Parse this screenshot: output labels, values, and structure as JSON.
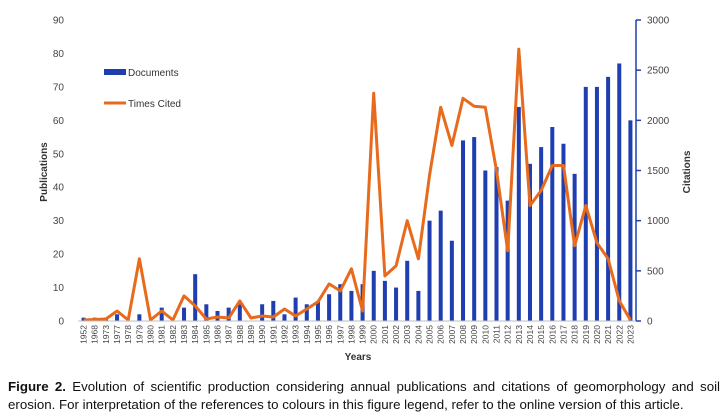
{
  "chart_data": {
    "type": "bar+line",
    "xlabel": "Years",
    "ylabel_left": "Publications",
    "ylabel_right": "Citations",
    "ylim_left": [
      0,
      90
    ],
    "ylim_right": [
      0,
      3000
    ],
    "yticks_left": [
      "0",
      "10",
      "20",
      "30",
      "40",
      "50",
      "60",
      "70",
      "80",
      "90"
    ],
    "yticks_right": [
      "0",
      "500",
      "1000",
      "1500",
      "2000",
      "2500",
      "3000"
    ],
    "legend_position": "top-left",
    "bar_color": "#1f3fb0",
    "line_color": "#e86a1c",
    "categories": [
      "1952",
      "1968",
      "1973",
      "1977",
      "1978",
      "1979",
      "1980",
      "1981",
      "1982",
      "1983",
      "1984",
      "1985",
      "1986",
      "1987",
      "1988",
      "1989",
      "1990",
      "1991",
      "1992",
      "1993",
      "1994",
      "1995",
      "1996",
      "1997",
      "1998",
      "1999",
      "2000",
      "2001",
      "2002",
      "2003",
      "2004",
      "2005",
      "2006",
      "2007",
      "2008",
      "2009",
      "2010",
      "2011",
      "2012",
      "2013",
      "2014",
      "2015",
      "2016",
      "2017",
      "2018",
      "2019",
      "2020",
      "2021",
      "2022",
      "2023"
    ],
    "series": [
      {
        "name": "Documents",
        "type": "bar",
        "axis": "left",
        "values": [
          1,
          1,
          1,
          2,
          0,
          2,
          0,
          4,
          0,
          4,
          14,
          5,
          3,
          4,
          5,
          0,
          5,
          6,
          2,
          7,
          5,
          6,
          8,
          11,
          9,
          11,
          15,
          12,
          10,
          18,
          9,
          30,
          33,
          24,
          54,
          55,
          45,
          46,
          36,
          64,
          47,
          52,
          58,
          53,
          44,
          70,
          70,
          73,
          77,
          60
        ]
      },
      {
        "name": "Times Cited",
        "type": "line",
        "axis": "right",
        "values": [
          10,
          15,
          20,
          100,
          10,
          620,
          10,
          100,
          10,
          250,
          150,
          20,
          40,
          30,
          200,
          30,
          50,
          40,
          120,
          50,
          120,
          190,
          370,
          300,
          520,
          100,
          2270,
          450,
          550,
          1000,
          620,
          1450,
          2130,
          1750,
          2220,
          2140,
          2130,
          1500,
          700,
          2710,
          1150,
          1300,
          1550,
          1550,
          750,
          1150,
          780,
          620,
          200,
          10
        ]
      }
    ]
  },
  "caption": {
    "lead": "Figure 2.",
    "text": "Evolution of scientific production considering annual publications and citations of geomorphology and soil erosion. For interpretation of the references to colours in this figure legend, refer to the online version of this article."
  }
}
